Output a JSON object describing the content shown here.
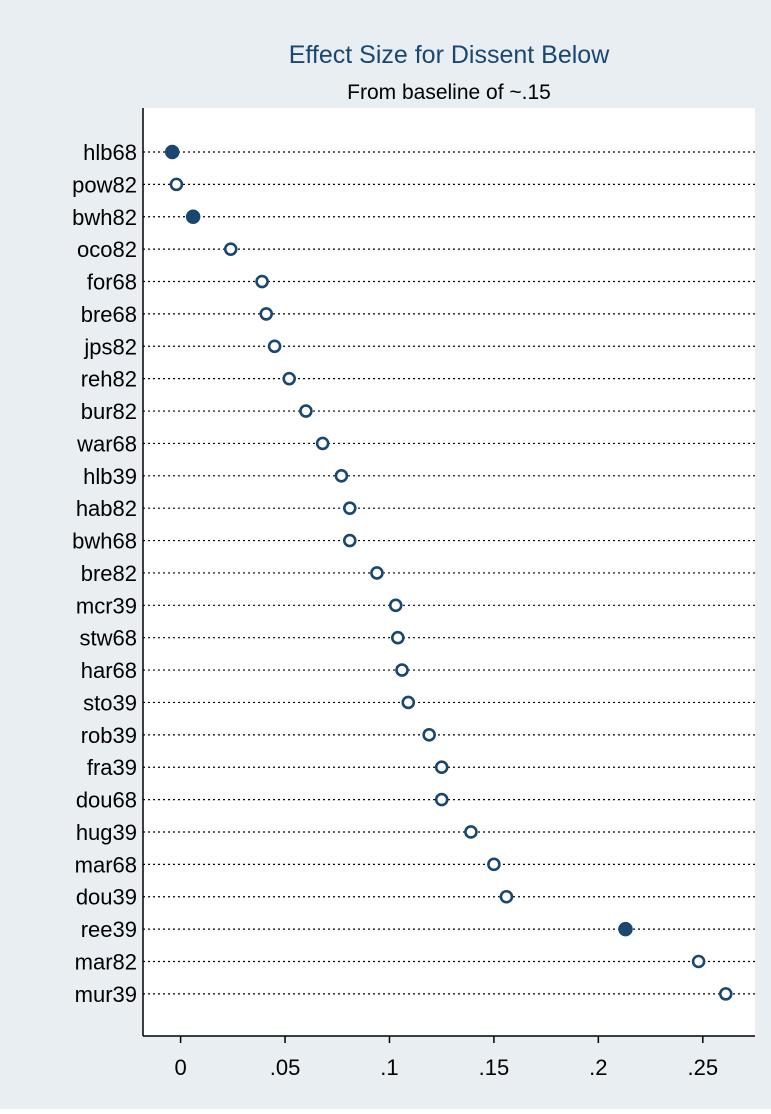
{
  "chart_data": {
    "type": "scatter",
    "title": "Effect Size for Dissent Below",
    "subtitle": "From baseline of ~.15",
    "xlabel": "",
    "ylabel": "",
    "xlim": [
      -0.018,
      0.275
    ],
    "xticks": [
      0,
      0.05,
      0.1,
      0.15,
      0.2,
      0.25
    ],
    "xtick_labels": [
      "0",
      ".05",
      ".1",
      ".15",
      ".2",
      ".25"
    ],
    "grid": "dotted horizontal guide line per category",
    "legend": "none",
    "colors": {
      "background": "#e9eef3",
      "plot_background": "#ffffff",
      "marker": "#1a476f",
      "text": "#000000",
      "title": "#1a476f"
    },
    "points": [
      {
        "label": "hlb68",
        "value": -0.004,
        "marker": "filled"
      },
      {
        "label": "pow82",
        "value": -0.002,
        "marker": "hollow"
      },
      {
        "label": "bwh82",
        "value": 0.006,
        "marker": "filled"
      },
      {
        "label": "oco82",
        "value": 0.024,
        "marker": "hollow"
      },
      {
        "label": "for68",
        "value": 0.039,
        "marker": "hollow"
      },
      {
        "label": "bre68",
        "value": 0.041,
        "marker": "hollow"
      },
      {
        "label": "jps82",
        "value": 0.045,
        "marker": "hollow"
      },
      {
        "label": "reh82",
        "value": 0.052,
        "marker": "hollow"
      },
      {
        "label": "bur82",
        "value": 0.06,
        "marker": "hollow"
      },
      {
        "label": "war68",
        "value": 0.068,
        "marker": "hollow"
      },
      {
        "label": "hlb39",
        "value": 0.077,
        "marker": "hollow"
      },
      {
        "label": "hab82",
        "value": 0.081,
        "marker": "hollow"
      },
      {
        "label": "bwh68",
        "value": 0.081,
        "marker": "hollow"
      },
      {
        "label": "bre82",
        "value": 0.094,
        "marker": "hollow"
      },
      {
        "label": "mcr39",
        "value": 0.103,
        "marker": "hollow"
      },
      {
        "label": "stw68",
        "value": 0.104,
        "marker": "hollow"
      },
      {
        "label": "har68",
        "value": 0.106,
        "marker": "hollow"
      },
      {
        "label": "sto39",
        "value": 0.109,
        "marker": "hollow"
      },
      {
        "label": "rob39",
        "value": 0.119,
        "marker": "hollow"
      },
      {
        "label": "fra39",
        "value": 0.125,
        "marker": "hollow"
      },
      {
        "label": "dou68",
        "value": 0.125,
        "marker": "hollow"
      },
      {
        "label": "hug39",
        "value": 0.139,
        "marker": "hollow"
      },
      {
        "label": "mar68",
        "value": 0.15,
        "marker": "hollow"
      },
      {
        "label": "dou39",
        "value": 0.156,
        "marker": "hollow"
      },
      {
        "label": "ree39",
        "value": 0.213,
        "marker": "filled"
      },
      {
        "label": "mar82",
        "value": 0.248,
        "marker": "hollow"
      },
      {
        "label": "mur39",
        "value": 0.261,
        "marker": "hollow"
      }
    ]
  }
}
